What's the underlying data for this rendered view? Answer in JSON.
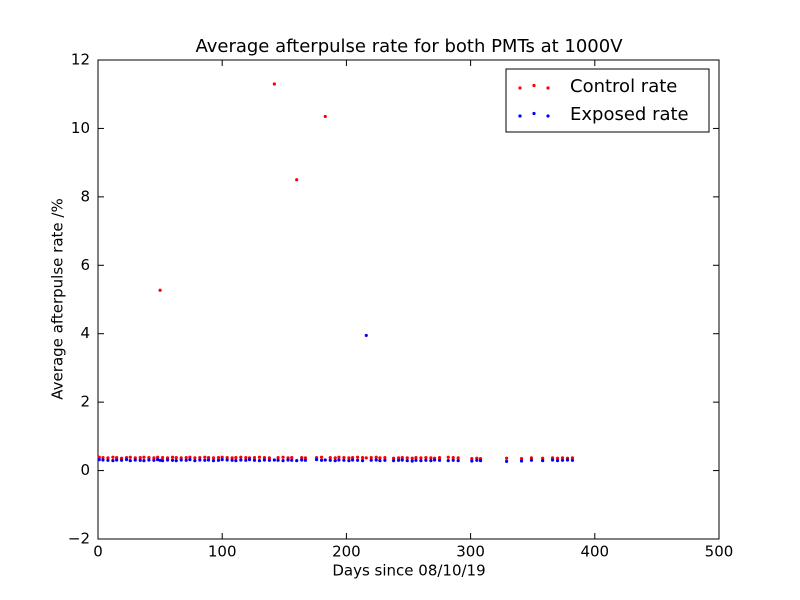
{
  "chart_data": {
    "type": "scatter",
    "title": "Average afterpulse rate for both PMTs at 1000V",
    "x_label": "Days since 08/10/19",
    "y_label": "Average afterpulse rate /%",
    "x": [
      1,
      4,
      8,
      12,
      15,
      19,
      23,
      26,
      30,
      34,
      37,
      41,
      45,
      48,
      50,
      52,
      56,
      60,
      63,
      67,
      71,
      74,
      78,
      82,
      86,
      89,
      93,
      97,
      100,
      104,
      108,
      111,
      115,
      119,
      122,
      126,
      130,
      134,
      138,
      142,
      145,
      149,
      153,
      156,
      160,
      164,
      167,
      176,
      180,
      183,
      187,
      191,
      194,
      198,
      202,
      205,
      209,
      213,
      216,
      220,
      224,
      227,
      231,
      238,
      242,
      245,
      249,
      253,
      256,
      260,
      264,
      268,
      271,
      275,
      282,
      286,
      290,
      301,
      305,
      308,
      329,
      341,
      349,
      358,
      366,
      370,
      374,
      378,
      382
    ],
    "series": [
      {
        "name": "Control rate",
        "color": "#ff0000",
        "values": [
          0.39,
          0.38,
          0.37,
          0.39,
          0.38,
          0.36,
          0.38,
          0.39,
          0.37,
          0.38,
          0.39,
          0.38,
          0.37,
          0.39,
          5.27,
          0.38,
          0.37,
          0.39,
          0.38,
          0.37,
          0.38,
          0.39,
          0.37,
          0.38,
          0.39,
          0.38,
          0.37,
          0.38,
          0.39,
          0.38,
          0.37,
          0.38,
          0.39,
          0.38,
          0.37,
          0.38,
          0.39,
          0.38,
          0.37,
          11.3,
          0.38,
          0.39,
          0.37,
          0.38,
          8.5,
          0.38,
          0.37,
          0.38,
          0.39,
          10.35,
          0.38,
          0.37,
          0.39,
          0.38,
          0.37,
          0.38,
          0.39,
          0.38,
          0.37,
          0.38,
          0.39,
          0.37,
          0.38,
          0.36,
          0.37,
          0.38,
          0.37,
          0.36,
          0.38,
          0.37,
          0.38,
          0.37,
          0.36,
          0.38,
          0.39,
          0.38,
          0.37,
          0.35,
          0.36,
          0.35,
          0.36,
          0.35,
          0.37,
          0.36,
          0.37,
          0.36,
          0.37,
          0.36,
          0.37
        ]
      },
      {
        "name": "Exposed rate",
        "color": "#0000ff",
        "values": [
          0.32,
          0.31,
          0.3,
          0.29,
          0.31,
          0.3,
          0.32,
          0.29,
          0.31,
          0.3,
          0.29,
          0.31,
          0.3,
          0.32,
          0.3,
          0.29,
          0.31,
          0.3,
          0.29,
          0.31,
          0.3,
          0.32,
          0.29,
          0.31,
          0.3,
          0.31,
          0.29,
          0.3,
          0.32,
          0.31,
          0.3,
          0.29,
          0.31,
          0.3,
          0.32,
          0.3,
          0.29,
          0.31,
          0.3,
          0.31,
          0.3,
          0.29,
          0.31,
          0.3,
          0.29,
          0.31,
          0.3,
          0.32,
          0.3,
          0.31,
          0.3,
          0.29,
          0.31,
          0.3,
          0.29,
          0.31,
          0.3,
          0.29,
          3.95,
          0.3,
          0.31,
          0.29,
          0.3,
          0.29,
          0.3,
          0.31,
          0.29,
          0.28,
          0.3,
          0.29,
          0.3,
          0.29,
          0.31,
          0.3,
          0.29,
          0.3,
          0.29,
          0.28,
          0.3,
          0.29,
          0.27,
          0.28,
          0.3,
          0.29,
          0.31,
          0.29,
          0.3,
          0.31,
          0.3
        ]
      }
    ],
    "xlim": [
      0,
      500
    ],
    "xticks": [
      0,
      100,
      200,
      300,
      400,
      500
    ],
    "ylim": [
      -2,
      12
    ],
    "yticks": [
      {
        "value": -2,
        "label": "−2"
      },
      0,
      2,
      4,
      6,
      8,
      10,
      12
    ],
    "grid": false,
    "legend": "upper right"
  }
}
